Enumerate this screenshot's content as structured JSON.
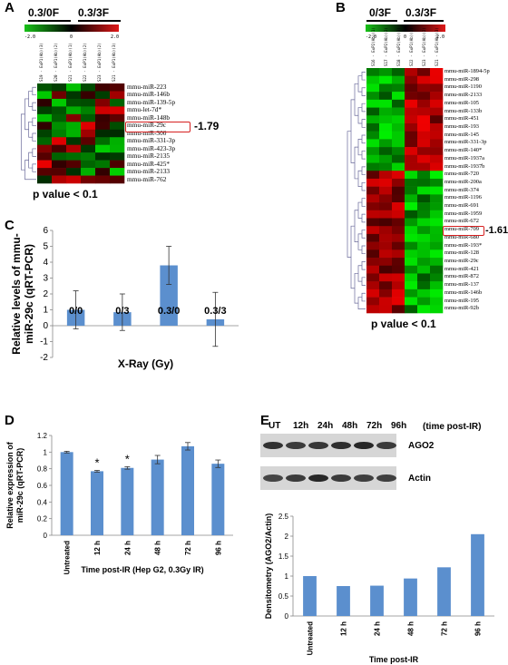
{
  "panels": {
    "A": {
      "letter": "A",
      "conditions": [
        "0.3/0F",
        "0.3/3F"
      ],
      "scale_ticks": [
        "-2.0",
        "0",
        "2.0"
      ],
      "sample_labels": [
        "S19 - ExP1(Ab)(3)",
        "S20 - ExP1(Ab)(2)",
        "S21 - ExP1(Ab)(1)",
        "S22 - ExP1(Ab)(2)",
        "S23 - ExP1(Ab)(2)",
        "S21 - ExP1(Ab)(3)"
      ],
      "genes": [
        "mmu-miR-223",
        "mmu-miR-146b",
        "mmu-miR-139-5p",
        "mmu-let-7d*",
        "mmu-miR-148b",
        "mmu-miR-29c",
        "mmu-miR-300",
        "mmu-miR-331-3p",
        "mmu-miR-423-3p",
        "mmu-miR-2135",
        "mmu-miR-425*",
        "mmu-miR-2133",
        "mmu-miR-762"
      ],
      "highlight": "mmu-miR-29c",
      "fold_change": "-1.79",
      "pvalue": "p value < 0.1"
    },
    "B": {
      "letter": "B",
      "conditions": [
        "0/3F",
        "0.3/3F"
      ],
      "scale_ticks": [
        "-2.0",
        "0",
        "2.0"
      ],
      "sample_labels": [
        "S16 - ExP2(Ab)(1)",
        "S17 - ExP2(Ab)(2)",
        "S18 - ExP2(Ab)(3)",
        "S22 - ExP1(Ab)(2)",
        "S23 - ExP1(Ab)(2)",
        "S21 - ExP1(Ab)(3)"
      ],
      "genes": [
        "mmu-miR-1894-5p",
        "mmu-miR-298",
        "mmu-miR-1190",
        "mmu-miR-2133",
        "mmu-miR-105",
        "mmu-miR-133b",
        "mmu-miR-451",
        "mmu-miR-193",
        "mmu-miR-145",
        "mmu-miR-331-3p",
        "mmu-miR-140*",
        "mmu-miR-1937a",
        "mmu-miR-1937b",
        "mmu-miR-720",
        "mmu-miR-200a",
        "mmu-miR-374",
        "mmu-miR-1196",
        "mmu-miR-691",
        "mmu-miR-1959",
        "mmu-miR-672",
        "mmu-miR-709",
        "mmu-miR-680",
        "mmu-miR-193*",
        "mmu-miR-128",
        "mmu-miR-29c",
        "mmu-miR-421",
        "mmu-miR-872",
        "mmu-miR-137",
        "mmu-miR-146b",
        "mmu-miR-195",
        "mmu-miR-92b"
      ],
      "highlight": "mmu-miR-29c",
      "fold_change": "-1.61",
      "pvalue": "p value < 0.1"
    },
    "C": {
      "letter": "C"
    },
    "D": {
      "letter": "D"
    },
    "E": {
      "letter": "E",
      "blot_lanes": [
        "UT",
        "12h",
        "24h",
        "48h",
        "72h",
        "96h"
      ],
      "blot_lane_suffix": "(time post-IR)",
      "blot_labels": [
        "AGO2",
        "Actin"
      ]
    }
  },
  "chart_data": [
    {
      "type": "bar",
      "panel": "C",
      "categories": [
        "0/0",
        "0/3",
        "0.3/0",
        "0.3/3"
      ],
      "values": [
        1.0,
        0.85,
        3.8,
        0.4
      ],
      "errors": [
        1.2,
        1.15,
        1.2,
        1.7
      ],
      "color": "#5b8fce",
      "xlabel": "X-Ray (Gy)",
      "ylabel": "Relative levels of mmu-miR-29c (qRT-PCR)",
      "ylim": [
        -2,
        6
      ],
      "yticks": [
        "-2",
        "-1",
        "0",
        "1",
        "2",
        "3",
        "4",
        "5",
        "6"
      ]
    },
    {
      "type": "bar",
      "panel": "D",
      "categories": [
        "Untreated",
        "12 h",
        "24 h",
        "48 h",
        "72 h",
        "96 h"
      ],
      "values": [
        1.0,
        0.77,
        0.81,
        0.91,
        1.07,
        0.86
      ],
      "errors": [
        0.01,
        0.01,
        0.015,
        0.05,
        0.045,
        0.045
      ],
      "significance": [
        "",
        "*",
        "*",
        "",
        "",
        ""
      ],
      "color": "#5b8fce",
      "xlabel": "Time post-IR (Hep G2, 0.3Gy IR)",
      "ylabel": "Relative expression of miR-29c (qRT-PCR)",
      "ylim": [
        0,
        1.2
      ],
      "yticks": [
        "0",
        "0.2",
        "0.4",
        "0.6",
        "0.8",
        "1",
        "1.2"
      ]
    },
    {
      "type": "bar",
      "panel": "E",
      "categories": [
        "Untreated",
        "12 h",
        "24 h",
        "48 h",
        "72 h",
        "96 h"
      ],
      "values": [
        1.0,
        0.75,
        0.76,
        0.94,
        1.22,
        2.05
      ],
      "color": "#5b8fce",
      "xlabel": "Time post-IR",
      "ylabel": "Densitometry (AGO2/Actin)",
      "ylim": [
        0,
        2.5
      ],
      "yticks": [
        "0",
        "0.5",
        "1",
        "1.5",
        "2",
        "2.5"
      ]
    }
  ]
}
